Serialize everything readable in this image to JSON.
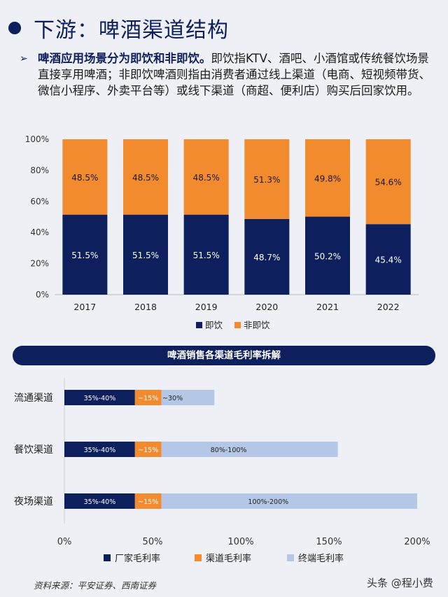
{
  "page": {
    "title": "下游：啤酒渠道结构",
    "para_bold": "啤酒应用场景分为即饮和非即饮。",
    "para_rest": "即饮指KTV、酒吧、小酒馆或传统餐饮场景直接享用啤酒；非即饮啤酒则指由消费者通过线上渠道（电商、短视频带货、微信小程序、外卖平台等）或线下渠道（商超、便利店）购买后回家饮用。",
    "banner": "啤酒销售各渠道毛利率拆解",
    "source": "资料来源：平安证券、西南证券",
    "watermark": "头条 @程小费",
    "bullet_glyph": "➢"
  },
  "chart_data": [
    {
      "type": "bar",
      "stacked": true,
      "categories": [
        "2017",
        "2018",
        "2019",
        "2020",
        "2021",
        "2022"
      ],
      "series": [
        {
          "name": "即饮",
          "color": "#0d1f5c",
          "values": [
            51.5,
            51.5,
            51.5,
            48.7,
            50.2,
            45.4
          ],
          "labels": [
            "51.5%",
            "51.5%",
            "51.5%",
            "48.7%",
            "50.2%",
            "45.4%"
          ]
        },
        {
          "name": "非即饮",
          "color": "#f28a2e",
          "values": [
            48.5,
            48.5,
            48.5,
            51.3,
            49.8,
            54.6
          ],
          "labels": [
            "48.5%",
            "48.5%",
            "48.5%",
            "51.3%",
            "49.8%",
            "54.6%"
          ]
        }
      ],
      "ylim": [
        0,
        100
      ],
      "yticks": [
        "0%",
        "20%",
        "40%",
        "60%",
        "80%",
        "100%"
      ],
      "legend": "bottom",
      "grid": false
    },
    {
      "type": "bar",
      "orientation": "horizontal",
      "stacked": true,
      "categories": [
        "流通渠道",
        "餐饮渠道",
        "夜场渠道"
      ],
      "series": [
        {
          "name": "厂家毛利率",
          "color": "#0d1f5c",
          "values": [
            40,
            40,
            40
          ],
          "labels": [
            "35%-40%",
            "35%-40%",
            "35%-40%"
          ]
        },
        {
          "name": "渠道毛利率",
          "color": "#f28a2e",
          "values": [
            15,
            15,
            15
          ],
          "labels": [
            "~15%",
            "~15%",
            "~15%"
          ]
        },
        {
          "name": "终端毛利率",
          "color": "#b4c7e7",
          "values": [
            30,
            100,
            145
          ],
          "labels": [
            "~30%",
            "80%-100%",
            "100%-200%"
          ]
        }
      ],
      "xlim": [
        0,
        200
      ],
      "xticks": [
        "0%",
        "50%",
        "100%",
        "150%",
        "200%"
      ],
      "legend": "bottom",
      "grid": false
    }
  ]
}
